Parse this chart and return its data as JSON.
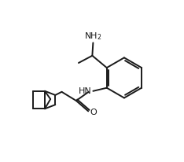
{
  "bg_color": "#ffffff",
  "line_color": "#1a1a1a",
  "line_width": 1.4,
  "text_color": "#1a1a1a",
  "font_size": 8,
  "fig_width": 2.34,
  "fig_height": 2.06,
  "dpi": 100
}
